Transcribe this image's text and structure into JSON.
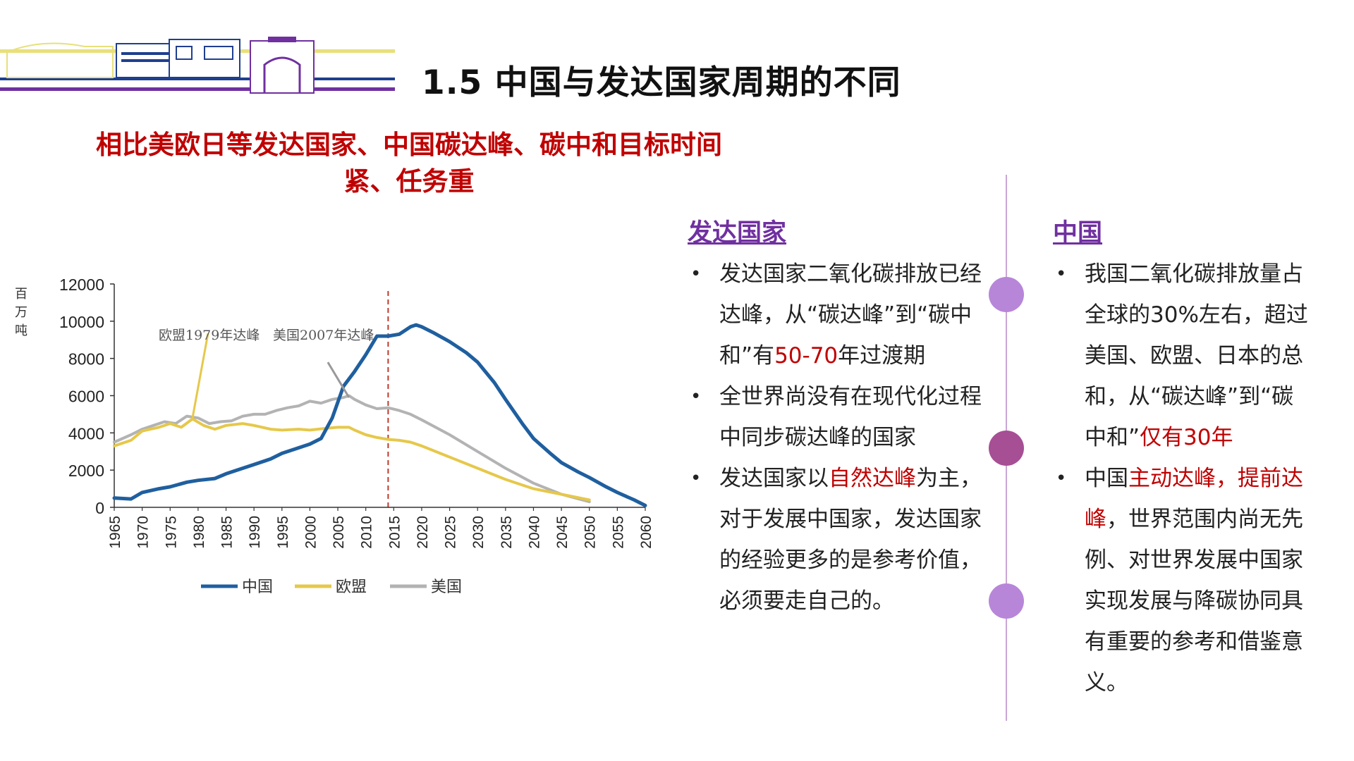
{
  "slide_title": "1.5 中国与发达国家周期的不同",
  "subtitle": "相比美欧日等发达国家、中国碳达峰、碳中和目标时间紧、任务重",
  "colors": {
    "title": "#111111",
    "subtitle": "#c00000",
    "heading": "#7030a0",
    "highlight": "#c00000",
    "divider": "#c9a7d4",
    "dot_light": "#b786d9",
    "dot_dark": "#a64f95"
  },
  "left_column": {
    "heading": "发达国家",
    "bullets": [
      {
        "segments": [
          {
            "text": "发达国家二氧化碳排放已经达峰，从“碳达峰”到“碳中和”有"
          },
          {
            "text": "50-70",
            "highlight": true
          },
          {
            "text": "年过渡期"
          }
        ]
      },
      {
        "segments": [
          {
            "text": "全世界尚没有在现代化过程中同步碳达峰的国家"
          }
        ]
      },
      {
        "segments": [
          {
            "text": "发达国家以"
          },
          {
            "text": "自然达峰",
            "highlight": true
          },
          {
            "text": "为主，对于发展中国家，发达国家的经验更多的是参考价值，必须要走自己的。"
          }
        ]
      }
    ]
  },
  "right_column": {
    "heading": "中国",
    "bullets": [
      {
        "segments": [
          {
            "text": "我国二氧化碳排放量占全球的30%左右，超过美国、欧盟、日本的总和，从“碳达峰”到“碳中和”"
          },
          {
            "text": "仅有30年",
            "highlight": true
          }
        ]
      },
      {
        "segments": [
          {
            "text": "中国"
          },
          {
            "text": "主动达峰，提前达峰",
            "highlight": true
          },
          {
            "text": "，世界范围内尚无先例、对世界发展中国家实现发展与降碳协同具有重要的参考和借鉴意义。"
          }
        ]
      }
    ]
  },
  "chart_data": {
    "type": "line",
    "ylabel": "百万吨",
    "ylim": [
      0,
      12000
    ],
    "yticks": [
      0,
      2000,
      4000,
      6000,
      8000,
      10000,
      12000
    ],
    "xlim": [
      1965,
      2060
    ],
    "xticks": [
      1965,
      1970,
      1975,
      1980,
      1985,
      1990,
      1995,
      2000,
      2005,
      2010,
      2015,
      2020,
      2025,
      2030,
      2035,
      2040,
      2045,
      2050,
      2055,
      2060
    ],
    "vertical_line": 2014,
    "annotations": [
      {
        "text": "欧盟1979年达峰",
        "x": 1979,
        "y": 4800
      },
      {
        "text": "美国2007年达峰",
        "x": 2007,
        "y": 5900
      }
    ],
    "legend": "bottom",
    "series": [
      {
        "name": "中国",
        "color": "#1f5f9f",
        "x": [
          1965,
          1968,
          1970,
          1973,
          1975,
          1978,
          1980,
          1983,
          1985,
          1988,
          1990,
          1993,
          1995,
          1998,
          2000,
          2002,
          2004,
          2006,
          2008,
          2010,
          2012,
          2014,
          2016,
          2018,
          2019,
          2020,
          2022,
          2025,
          2028,
          2030,
          2033,
          2035,
          2038,
          2040,
          2043,
          2045,
          2048,
          2050,
          2053,
          2055,
          2058,
          2060
        ],
        "values": [
          500,
          450,
          800,
          1000,
          1100,
          1350,
          1450,
          1550,
          1800,
          2100,
          2300,
          2600,
          2900,
          3200,
          3400,
          3700,
          4800,
          6500,
          7300,
          8200,
          9200,
          9200,
          9300,
          9700,
          9800,
          9700,
          9400,
          8900,
          8300,
          7800,
          6700,
          5800,
          4500,
          3700,
          2900,
          2400,
          1900,
          1600,
          1100,
          800,
          400,
          100
        ]
      },
      {
        "name": "欧盟",
        "color": "#e6c84a",
        "x": [
          1965,
          1968,
          1970,
          1973,
          1975,
          1977,
          1979,
          1981,
          1983,
          1985,
          1988,
          1990,
          1993,
          1995,
          1998,
          2000,
          2003,
          2005,
          2007,
          2008,
          2010,
          2012,
          2014,
          2016,
          2018,
          2020,
          2025,
          2030,
          2035,
          2040,
          2045,
          2050
        ],
        "values": [
          3300,
          3600,
          4100,
          4300,
          4500,
          4300,
          4750,
          4400,
          4200,
          4400,
          4500,
          4400,
          4200,
          4150,
          4200,
          4150,
          4250,
          4300,
          4300,
          4150,
          3900,
          3750,
          3650,
          3600,
          3500,
          3300,
          2700,
          2100,
          1500,
          1000,
          700,
          400
        ]
      },
      {
        "name": "美国",
        "color": "#b3b3b3",
        "x": [
          1965,
          1968,
          1970,
          1972,
          1974,
          1976,
          1978,
          1980,
          1982,
          1984,
          1986,
          1988,
          1990,
          1992,
          1994,
          1996,
          1998,
          2000,
          2002,
          2004,
          2006,
          2007,
          2008,
          2010,
          2012,
          2014,
          2016,
          2018,
          2020,
          2025,
          2030,
          2035,
          2040,
          2045,
          2050
        ],
        "values": [
          3500,
          3900,
          4200,
          4400,
          4600,
          4500,
          4900,
          4800,
          4500,
          4600,
          4650,
          4900,
          5000,
          5000,
          5200,
          5350,
          5450,
          5700,
          5600,
          5800,
          5900,
          6000,
          5800,
          5500,
          5300,
          5350,
          5200,
          5000,
          4700,
          3900,
          3000,
          2100,
          1300,
          700,
          300
        ]
      }
    ]
  }
}
